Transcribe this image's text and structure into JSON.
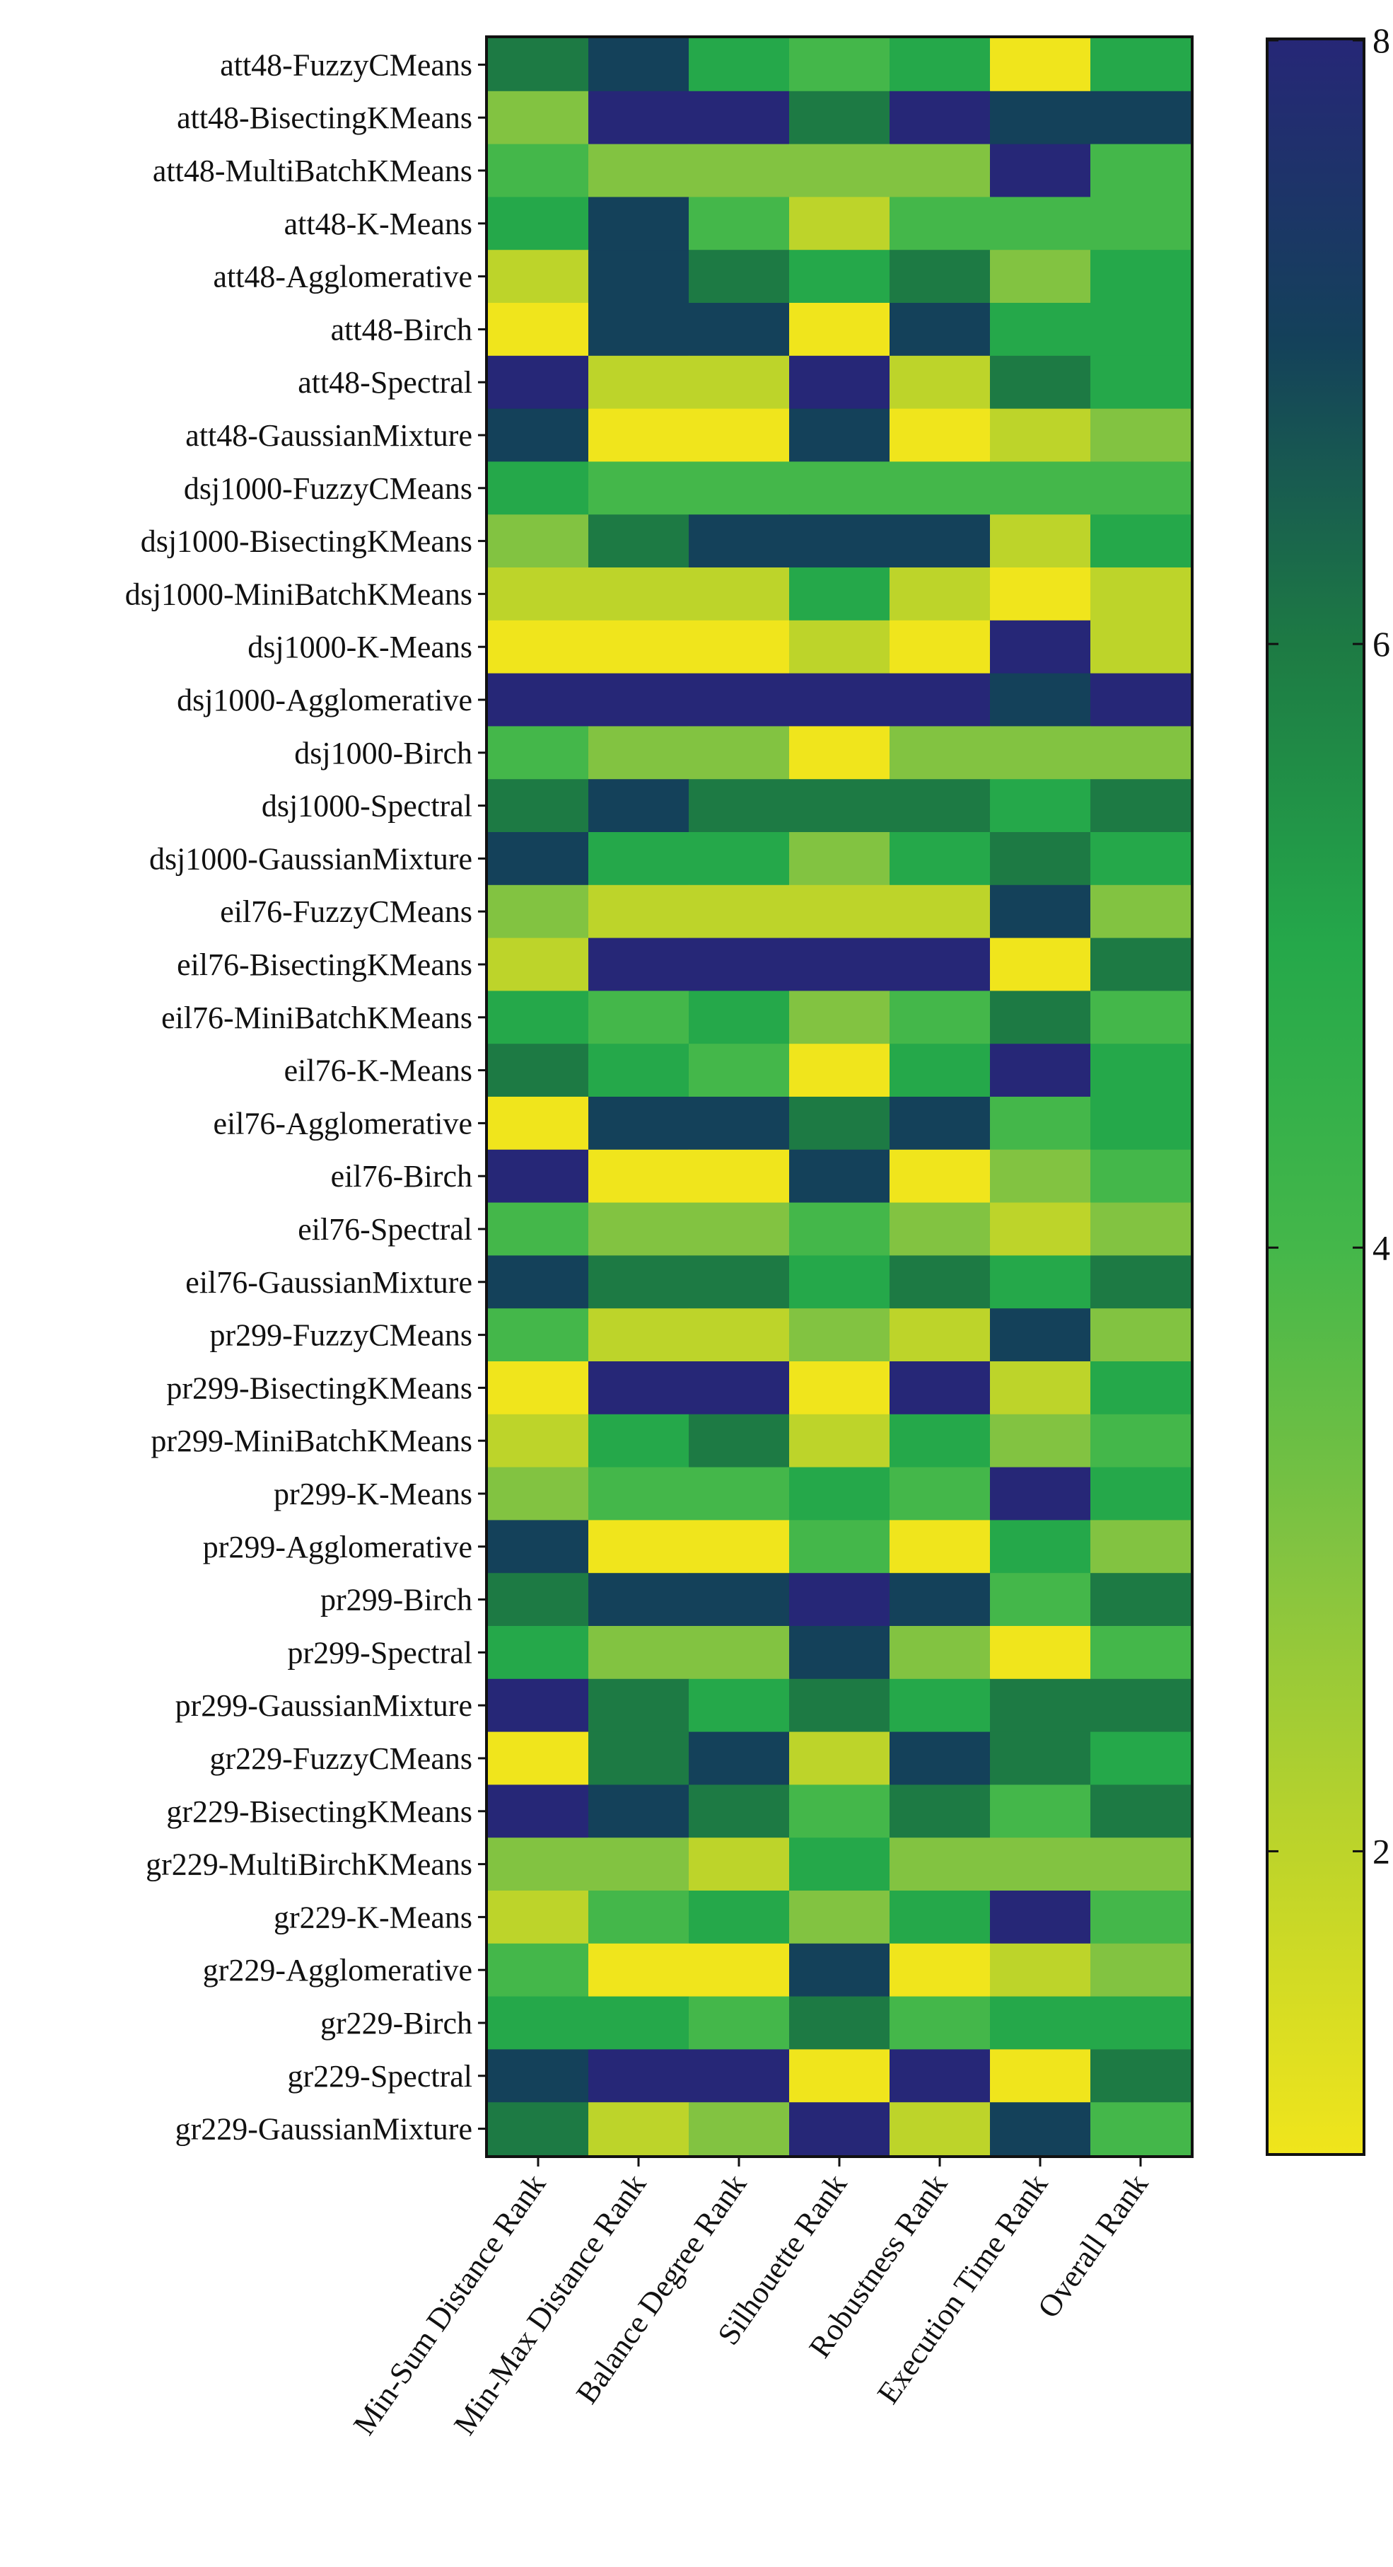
{
  "chart_data": {
    "type": "heatmap",
    "title": "",
    "xlabel": "",
    "ylabel": "",
    "columns": [
      "Min-Sum Distance Rank",
      "Min-Max Distance Rank",
      "Balance Degree Rank",
      "Silhouette Rank",
      "Robustness Rank",
      "Execution Time Rank",
      "Overall Rank"
    ],
    "rows": [
      "att48-FuzzyCMeans",
      "att48-BisectingKMeans",
      "att48-MultiBatchKMeans",
      "att48-K-Means",
      "att48-Agglomerative",
      "att48-Birch",
      "att48-Spectral",
      "att48-GaussianMixture",
      "dsj1000-FuzzyCMeans",
      "dsj1000-BisectingKMeans",
      "dsj1000-MiniBatchKMeans",
      "dsj1000-K-Means",
      "dsj1000-Agglomerative",
      "dsj1000-Birch",
      "dsj1000-Spectral",
      "dsj1000-GaussianMixture",
      "eil76-FuzzyCMeans",
      "eil76-BisectingKMeans",
      "eil76-MiniBatchKMeans",
      "eil76-K-Means",
      "eil76-Agglomerative",
      "eil76-Birch",
      "eil76-Spectral",
      "eil76-GaussianMixture",
      "pr299-FuzzyCMeans",
      "pr299-BisectingKMeans",
      "pr299-MiniBatchKMeans",
      "pr299-K-Means",
      "pr299-Agglomerative",
      "pr299-Birch",
      "pr299-Spectral",
      "pr299-GaussianMixture",
      "gr229-FuzzyCMeans",
      "gr229-BisectingKMeans",
      "gr229-MultiBirchKMeans",
      "gr229-K-Means",
      "gr229-Agglomerative",
      "gr229-Birch",
      "gr229-Spectral",
      "gr229-GaussianMixture"
    ],
    "values": [
      [
        6,
        7,
        5,
        4,
        5,
        1,
        5
      ],
      [
        3,
        8,
        8,
        6,
        8,
        7,
        7
      ],
      [
        4,
        3,
        3,
        3,
        3,
        8,
        4
      ],
      [
        5,
        7,
        4,
        2,
        4,
        4,
        4
      ],
      [
        2,
        7,
        6,
        5,
        6,
        3,
        5
      ],
      [
        1,
        7,
        7,
        1,
        7,
        5,
        5
      ],
      [
        8,
        2,
        2,
        8,
        2,
        6,
        5
      ],
      [
        7,
        1,
        1,
        7,
        1,
        2,
        3
      ],
      [
        5,
        4,
        4,
        4,
        4,
        4,
        4
      ],
      [
        3,
        6,
        7,
        7,
        7,
        2,
        5
      ],
      [
        2,
        2,
        2,
        5,
        2,
        1,
        2
      ],
      [
        1,
        1,
        1,
        2,
        1,
        8,
        2
      ],
      [
        8,
        8,
        8,
        8,
        8,
        7,
        8
      ],
      [
        4,
        3,
        3,
        1,
        3,
        3,
        3
      ],
      [
        6,
        7,
        6,
        6,
        6,
        5,
        6
      ],
      [
        7,
        5,
        5,
        3,
        5,
        6,
        5
      ],
      [
        3,
        2,
        2,
        2,
        2,
        7,
        3
      ],
      [
        2,
        8,
        8,
        8,
        8,
        1,
        6
      ],
      [
        5,
        4,
        5,
        3,
        4,
        6,
        4
      ],
      [
        6,
        5,
        4,
        1,
        5,
        8,
        5
      ],
      [
        1,
        7,
        7,
        6,
        7,
        4,
        5
      ],
      [
        8,
        1,
        1,
        7,
        1,
        3,
        4
      ],
      [
        4,
        3,
        3,
        4,
        3,
        2,
        3
      ],
      [
        7,
        6,
        6,
        5,
        6,
        5,
        6
      ],
      [
        4,
        2,
        2,
        3,
        2,
        7,
        3
      ],
      [
        1,
        8,
        8,
        1,
        8,
        2,
        5
      ],
      [
        2,
        5,
        6,
        2,
        5,
        3,
        4
      ],
      [
        3,
        4,
        4,
        5,
        4,
        8,
        5
      ],
      [
        7,
        1,
        1,
        4,
        1,
        5,
        3
      ],
      [
        6,
        7,
        7,
        8,
        7,
        4,
        6
      ],
      [
        5,
        3,
        3,
        7,
        3,
        1,
        4
      ],
      [
        8,
        6,
        5,
        6,
        5,
        6,
        6
      ],
      [
        1,
        6,
        7,
        2,
        7,
        6,
        5
      ],
      [
        8,
        7,
        6,
        4,
        6,
        4,
        6
      ],
      [
        3,
        3,
        2,
        5,
        3,
        3,
        3
      ],
      [
        2,
        4,
        5,
        3,
        5,
        8,
        4
      ],
      [
        4,
        1,
        1,
        7,
        1,
        2,
        3
      ],
      [
        5,
        5,
        4,
        6,
        4,
        5,
        5
      ],
      [
        7,
        8,
        8,
        1,
        8,
        1,
        6
      ],
      [
        6,
        2,
        3,
        8,
        2,
        7,
        4
      ]
    ],
    "colorbar": {
      "min": 1,
      "max": 8,
      "ticks": [
        2,
        4,
        6,
        8
      ],
      "colormap": "viridis-like (yellow = low, dark blue = high)"
    },
    "colors": {
      "1": "#f0e51c",
      "2": "#bdd42a",
      "3": "#82c341",
      "4": "#44b74a",
      "5": "#25a84a",
      "6": "#1d7a44",
      "7": "#14415a",
      "8": "#262777"
    },
    "grid": false,
    "legend": "right"
  }
}
